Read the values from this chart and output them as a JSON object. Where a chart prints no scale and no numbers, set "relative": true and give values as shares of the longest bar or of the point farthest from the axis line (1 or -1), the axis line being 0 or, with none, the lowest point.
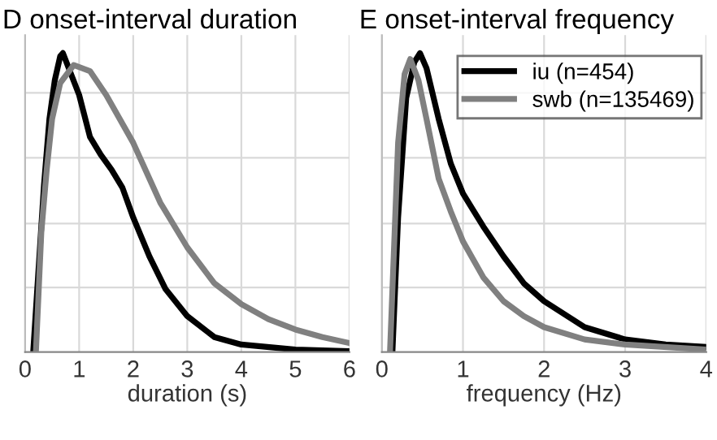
{
  "chart_data": [
    {
      "type": "line",
      "title": "D onset-interval duration",
      "xlabel": "duration (s)",
      "relative": true,
      "xlim": [
        0,
        6
      ],
      "xticks": [
        0,
        1,
        2,
        3,
        4,
        5,
        6
      ],
      "grid": true,
      "tick_labels": "x",
      "legend": false,
      "series": [
        {
          "color": "#000000",
          "x": [
            0.15,
            0.25,
            0.35,
            0.45,
            0.55,
            0.65,
            0.7,
            1.0,
            1.2,
            1.4,
            1.6,
            1.8,
            2.0,
            2.3,
            2.6,
            3.0,
            3.5,
            4.0,
            5.0,
            6.0
          ],
          "values": [
            0,
            0.28,
            0.56,
            0.78,
            0.91,
            0.99,
            1.0,
            0.86,
            0.72,
            0.66,
            0.61,
            0.55,
            0.45,
            0.32,
            0.21,
            0.12,
            0.05,
            0.025,
            0.008,
            0.003
          ]
        },
        {
          "color": "#808080",
          "x": [
            0.2,
            0.3,
            0.4,
            0.5,
            0.65,
            0.9,
            1.2,
            1.5,
            2.0,
            2.5,
            3.0,
            3.5,
            4.0,
            4.5,
            5.0,
            5.5,
            6.0
          ],
          "values": [
            0,
            0.4,
            0.61,
            0.78,
            0.9,
            0.96,
            0.94,
            0.86,
            0.7,
            0.5,
            0.35,
            0.23,
            0.16,
            0.11,
            0.075,
            0.05,
            0.03
          ]
        }
      ]
    },
    {
      "type": "line",
      "title": "E onset-interval frequency",
      "xlabel": "frequency (Hz)",
      "relative": true,
      "xlim": [
        0,
        4
      ],
      "xticks": [
        0,
        1,
        2,
        3,
        4
      ],
      "grid": true,
      "tick_labels": "x",
      "legend": "top right",
      "series": [
        {
          "name": "iu (n=454)",
          "color": "#000000",
          "x": [
            0.13,
            0.2,
            0.3,
            0.4,
            0.47,
            0.55,
            0.7,
            0.85,
            1.0,
            1.25,
            1.5,
            1.75,
            2.0,
            2.5,
            3.0,
            3.5,
            4.0
          ],
          "values": [
            0,
            0.45,
            0.85,
            0.97,
            1.0,
            0.95,
            0.78,
            0.63,
            0.53,
            0.42,
            0.32,
            0.23,
            0.17,
            0.083,
            0.042,
            0.025,
            0.017
          ]
        },
        {
          "name": "swb (n=135469)",
          "color": "#808080",
          "x": [
            0.1,
            0.2,
            0.28,
            0.35,
            0.45,
            0.55,
            0.7,
            0.85,
            1.0,
            1.25,
            1.5,
            1.75,
            2.0,
            2.5,
            3.0,
            4.0
          ],
          "values": [
            0,
            0.7,
            0.93,
            0.98,
            0.91,
            0.78,
            0.58,
            0.47,
            0.37,
            0.25,
            0.17,
            0.12,
            0.083,
            0.042,
            0.025,
            0.008
          ]
        }
      ]
    }
  ]
}
